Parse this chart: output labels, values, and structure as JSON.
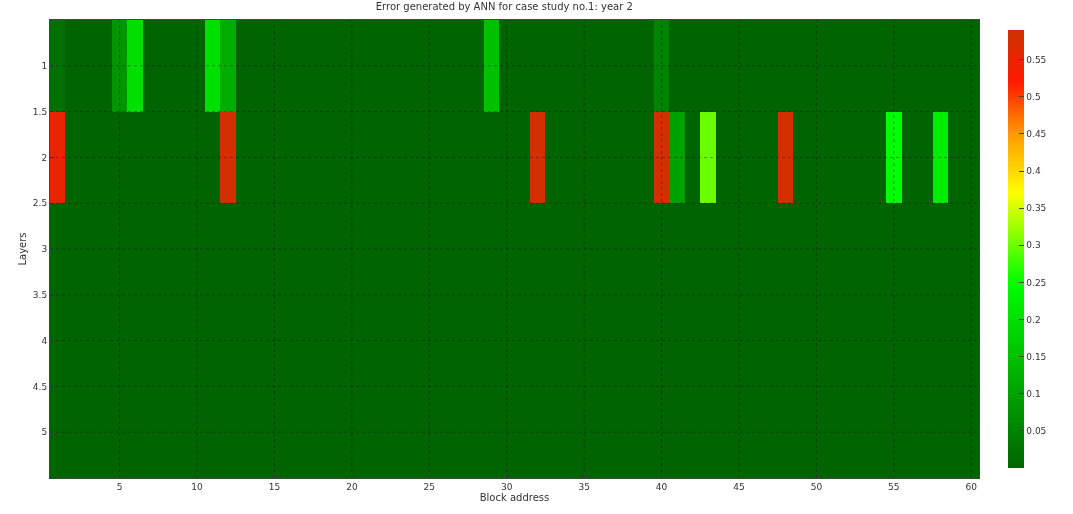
{
  "chart_data": {
    "type": "heatmap",
    "title": "Error generated by ANN for case study no.1: year 2",
    "xlabel": "Block address",
    "ylabel": "Layers",
    "x": [
      1,
      2,
      3,
      4,
      5,
      6,
      7,
      8,
      9,
      10,
      11,
      12,
      13,
      14,
      15,
      16,
      17,
      18,
      19,
      20,
      21,
      22,
      23,
      24,
      25,
      26,
      27,
      28,
      29,
      30,
      31,
      32,
      33,
      34,
      35,
      36,
      37,
      38,
      39,
      40,
      41,
      42,
      43,
      44,
      45,
      46,
      47,
      48,
      49,
      50,
      51,
      52,
      53,
      54,
      55,
      56,
      57,
      58,
      59,
      60
    ],
    "y": [
      1,
      2,
      3,
      4,
      5
    ],
    "cells": [
      [
        0.02,
        0,
        0,
        0,
        0.08,
        0.2,
        0,
        0,
        0,
        0,
        0.2,
        0.12,
        0,
        0,
        0,
        0,
        0,
        0,
        0,
        0,
        0,
        0,
        0,
        0,
        0,
        0,
        0,
        0,
        0.15,
        0,
        0,
        0,
        0,
        0,
        0,
        0,
        0,
        0,
        0,
        0.05,
        0,
        0,
        0,
        0,
        0,
        0,
        0,
        0,
        0,
        0,
        0,
        0,
        0,
        0,
        0,
        0,
        0,
        0,
        0,
        0
      ],
      [
        0.55,
        0,
        0,
        0,
        0,
        0,
        0,
        0,
        0,
        0,
        0,
        0.58,
        0,
        0,
        0,
        0,
        0,
        0,
        0,
        0,
        0,
        0,
        0,
        0,
        0,
        0,
        0,
        0,
        0,
        0,
        0,
        0.58,
        0,
        0,
        0,
        0,
        0,
        0,
        0,
        0.58,
        0.1,
        0,
        0.3,
        0,
        0,
        0,
        0,
        0.58,
        0,
        0,
        0,
        0,
        0,
        0,
        0.25,
        0,
        0,
        0.22,
        0,
        0
      ],
      [
        0,
        0,
        0,
        0,
        0,
        0,
        0,
        0,
        0,
        0,
        0,
        0,
        0,
        0,
        0,
        0,
        0,
        0,
        0,
        0,
        0,
        0,
        0,
        0,
        0,
        0,
        0,
        0,
        0,
        0,
        0,
        0,
        0,
        0,
        0,
        0,
        0,
        0,
        0,
        0,
        0,
        0,
        0,
        0,
        0,
        0,
        0,
        0,
        0,
        0,
        0,
        0,
        0,
        0,
        0,
        0,
        0,
        0,
        0,
        0
      ],
      [
        0,
        0,
        0,
        0,
        0,
        0,
        0,
        0,
        0,
        0,
        0,
        0,
        0,
        0,
        0,
        0,
        0,
        0,
        0,
        0,
        0,
        0,
        0,
        0,
        0,
        0,
        0,
        0,
        0,
        0,
        0,
        0,
        0,
        0,
        0,
        0,
        0,
        0,
        0,
        0,
        0,
        0,
        0,
        0,
        0,
        0,
        0,
        0,
        0,
        0,
        0,
        0,
        0,
        0,
        0,
        0,
        0,
        0,
        0,
        0
      ],
      [
        0,
        0,
        0,
        0,
        0,
        0,
        0,
        0,
        0,
        0,
        0,
        0,
        0,
        0,
        0,
        0,
        0,
        0,
        0,
        0,
        0,
        0,
        0,
        0,
        0,
        0,
        0,
        0,
        0,
        0,
        0,
        0,
        0,
        0,
        0,
        0,
        0,
        0,
        0,
        0,
        0,
        0,
        0,
        0,
        0,
        0,
        0,
        0,
        0,
        0,
        0,
        0,
        0,
        0,
        0,
        0,
        0,
        0,
        0,
        0
      ]
    ],
    "xlim": [
      0.5,
      60.5
    ],
    "xticks": [
      5,
      10,
      15,
      20,
      25,
      30,
      35,
      40,
      45,
      50,
      55,
      60
    ],
    "ylim": [
      5.5,
      0.5
    ],
    "yticks": [
      1,
      1.5,
      2,
      2.5,
      3,
      3.5,
      4,
      4.5,
      5
    ],
    "clim": [
      0,
      0.59
    ],
    "cticks": [
      0.05,
      0.1,
      0.15,
      0.2,
      0.25,
      0.3,
      0.35,
      0.4,
      0.45,
      0.5,
      0.55
    ],
    "grid": true
  }
}
